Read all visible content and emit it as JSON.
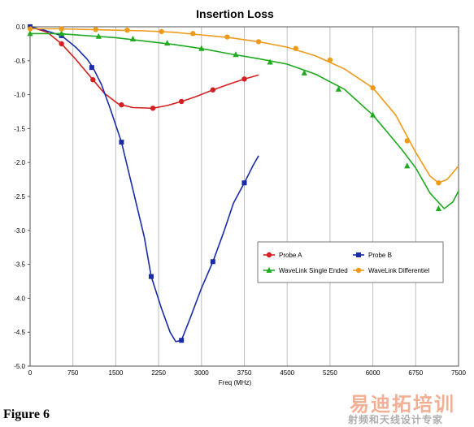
{
  "chart_data": {
    "type": "line",
    "title": "Insertion Loss",
    "xlabel": "Freq (MHz)",
    "ylabel": "",
    "xlim": [
      0,
      7500
    ],
    "ylim": [
      -5.0,
      0.0
    ],
    "x_ticks": [
      "0",
      "750",
      "1500",
      "2250",
      "3000",
      "3750",
      "4500",
      "5250",
      "6000",
      "6750",
      "7500"
    ],
    "y_ticks": [
      "0.0",
      "-0.5",
      "-1.0",
      "-1.5",
      "-2.0",
      "-2.5",
      "-3.0",
      "-3.5",
      "-4.0",
      "-4.5",
      "-5.0"
    ],
    "grid": "vertical",
    "legend_placement": "lower-right",
    "series": [
      {
        "name": "Probe A",
        "color": "#d42020",
        "marker": "circle",
        "line": [
          [
            0,
            0
          ],
          [
            300,
            -0.08
          ],
          [
            550,
            -0.25
          ],
          [
            800,
            -0.48
          ],
          [
            1100,
            -0.78
          ],
          [
            1300,
            -0.98
          ],
          [
            1550,
            -1.14
          ],
          [
            1800,
            -1.19
          ],
          [
            2150,
            -1.2
          ],
          [
            2400,
            -1.16
          ],
          [
            2650,
            -1.1
          ],
          [
            2900,
            -1.03
          ],
          [
            3200,
            -0.93
          ],
          [
            3500,
            -0.84
          ],
          [
            3750,
            -0.77
          ],
          [
            4000,
            -0.71
          ]
        ],
        "markers": [
          [
            0,
            0
          ],
          [
            550,
            -0.25
          ],
          [
            1100,
            -0.78
          ],
          [
            1600,
            -1.15
          ],
          [
            2150,
            -1.2
          ],
          [
            2650,
            -1.1
          ],
          [
            3200,
            -0.93
          ],
          [
            3750,
            -0.77
          ]
        ]
      },
      {
        "name": "Probe B",
        "color": "#1a2ca8",
        "marker": "square",
        "line": [
          [
            0,
            0
          ],
          [
            250,
            -0.05
          ],
          [
            550,
            -0.13
          ],
          [
            800,
            -0.3
          ],
          [
            1000,
            -0.48
          ],
          [
            1100,
            -0.6
          ],
          [
            1250,
            -0.85
          ],
          [
            1400,
            -1.2
          ],
          [
            1600,
            -1.7
          ],
          [
            1800,
            -2.4
          ],
          [
            2000,
            -3.1
          ],
          [
            2120,
            -3.68
          ],
          [
            2300,
            -4.15
          ],
          [
            2450,
            -4.5
          ],
          [
            2550,
            -4.64
          ],
          [
            2650,
            -4.62
          ],
          [
            2800,
            -4.3
          ],
          [
            3000,
            -3.85
          ],
          [
            3200,
            -3.46
          ],
          [
            3400,
            -3.0
          ],
          [
            3560,
            -2.6
          ],
          [
            3750,
            -2.3
          ],
          [
            3900,
            -2.05
          ],
          [
            4000,
            -1.9
          ]
        ],
        "markers": [
          [
            0,
            0
          ],
          [
            550,
            -0.13
          ],
          [
            1080,
            -0.6
          ],
          [
            1600,
            -1.7
          ],
          [
            2120,
            -3.68
          ],
          [
            2650,
            -4.62
          ],
          [
            3200,
            -3.46
          ],
          [
            3750,
            -2.3
          ]
        ]
      },
      {
        "name": "WaveLink Single Ended",
        "color": "#1faa1f",
        "marker": "triangle",
        "line": [
          [
            0,
            -0.1
          ],
          [
            500,
            -0.1
          ],
          [
            1000,
            -0.13
          ],
          [
            1500,
            -0.16
          ],
          [
            2000,
            -0.21
          ],
          [
            2500,
            -0.26
          ],
          [
            3000,
            -0.32
          ],
          [
            3500,
            -0.4
          ],
          [
            4000,
            -0.47
          ],
          [
            4500,
            -0.55
          ],
          [
            5000,
            -0.7
          ],
          [
            5500,
            -0.92
          ],
          [
            6000,
            -1.3
          ],
          [
            6500,
            -1.8
          ],
          [
            6750,
            -2.08
          ],
          [
            7000,
            -2.45
          ],
          [
            7250,
            -2.68
          ],
          [
            7400,
            -2.58
          ],
          [
            7500,
            -2.42
          ]
        ],
        "markers": [
          [
            0,
            -0.1
          ],
          [
            550,
            -0.1
          ],
          [
            1200,
            -0.14
          ],
          [
            1800,
            -0.18
          ],
          [
            2400,
            -0.24
          ],
          [
            3000,
            -0.32
          ],
          [
            3600,
            -0.41
          ],
          [
            4200,
            -0.52
          ],
          [
            4800,
            -0.68
          ],
          [
            5400,
            -0.92
          ],
          [
            6000,
            -1.3
          ],
          [
            6600,
            -2.05
          ],
          [
            7150,
            -2.68
          ]
        ]
      },
      {
        "name": "WaveLink Differentiel",
        "color": "#f09a1a",
        "marker": "circle",
        "line": [
          [
            0,
            -0.03
          ],
          [
            500,
            -0.03
          ],
          [
            1000,
            -0.04
          ],
          [
            1500,
            -0.05
          ],
          [
            2000,
            -0.06
          ],
          [
            2500,
            -0.08
          ],
          [
            3000,
            -0.12
          ],
          [
            3500,
            -0.16
          ],
          [
            4000,
            -0.22
          ],
          [
            4500,
            -0.3
          ],
          [
            5000,
            -0.43
          ],
          [
            5500,
            -0.62
          ],
          [
            6000,
            -0.9
          ],
          [
            6400,
            -1.3
          ],
          [
            6750,
            -1.85
          ],
          [
            7000,
            -2.2
          ],
          [
            7150,
            -2.3
          ],
          [
            7300,
            -2.25
          ],
          [
            7500,
            -2.05
          ]
        ],
        "markers": [
          [
            0,
            -0.03
          ],
          [
            550,
            -0.03
          ],
          [
            1150,
            -0.04
          ],
          [
            1700,
            -0.05
          ],
          [
            2300,
            -0.07
          ],
          [
            2850,
            -0.1
          ],
          [
            3450,
            -0.15
          ],
          [
            4000,
            -0.22
          ],
          [
            4650,
            -0.32
          ],
          [
            5250,
            -0.49
          ],
          [
            6000,
            -0.9
          ],
          [
            6600,
            -1.68
          ],
          [
            7150,
            -2.3
          ]
        ]
      }
    ]
  },
  "caption": "Figure 6",
  "watermark": {
    "brand": "易迪拓培训",
    "sub": "射频和天线设计专家"
  }
}
